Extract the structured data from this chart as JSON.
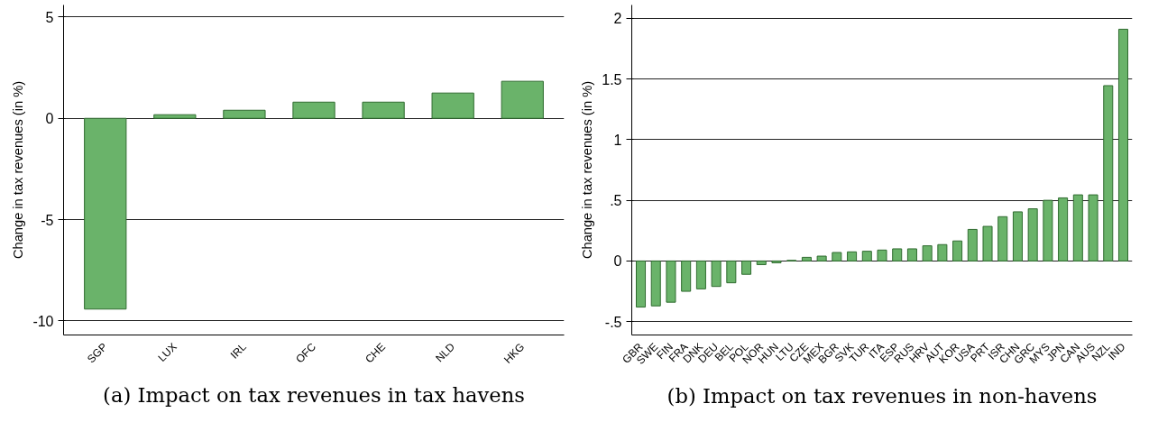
{
  "chart_data": [
    {
      "type": "bar",
      "title": "(a) Impact on tax revenues in tax havens",
      "ylabel": "Change in tax revenues (in %)",
      "categories": [
        "SGP",
        "LUX",
        "IRL",
        "OFC",
        "CHE",
        "NLD",
        "HKG"
      ],
      "series": [
        {
          "color": "#6ab36a",
          "values": [
            -9.42,
            0.18,
            0.4,
            0.8,
            0.8,
            1.25,
            1.83
          ]
        }
      ],
      "ylim": [
        -10.7,
        5.6
      ],
      "yticks": [
        -10,
        -5,
        0,
        5
      ],
      "grid": "y"
    },
    {
      "type": "bar",
      "title": "(b) Impact on tax revenues in non-havens",
      "ylabel": "Change in tax revenues (in %)",
      "categories": [
        "GBR",
        "SWE",
        "FIN",
        "FRA",
        "DNK",
        "DEU",
        "BEL",
        "POL",
        "NOR",
        "HUN",
        "LTU",
        "CZE",
        "MEX",
        "BGR",
        "SVK",
        "TUR",
        "ITA",
        "ESP",
        "RUS",
        "HRV",
        "AUT",
        "KOR",
        "USA",
        "PRT",
        "ISR",
        "CHN",
        "GRC",
        "MYS",
        "JPN",
        "CAN",
        "AUS",
        "NZL",
        "IND"
      ],
      "series": [
        {
          "color": "#6ab36a",
          "values": [
            -0.38,
            -0.37,
            -0.34,
            -0.25,
            -0.23,
            -0.21,
            -0.18,
            -0.11,
            -0.03,
            -0.015,
            0.005,
            0.03,
            0.04,
            0.07,
            0.075,
            0.08,
            0.09,
            0.1,
            0.1,
            0.125,
            0.135,
            0.165,
            0.26,
            0.285,
            0.365,
            0.405,
            0.43,
            0.5,
            0.52,
            0.545,
            0.545,
            1.445,
            1.91
          ]
        }
      ],
      "ylim": [
        -0.61,
        2.11
      ],
      "yticks": [
        {
          "value": -0.5,
          "label": "-.5"
        },
        0,
        {
          "value": 0.5,
          "label": ".5"
        },
        1,
        1.5,
        2
      ],
      "grid": "y"
    }
  ]
}
